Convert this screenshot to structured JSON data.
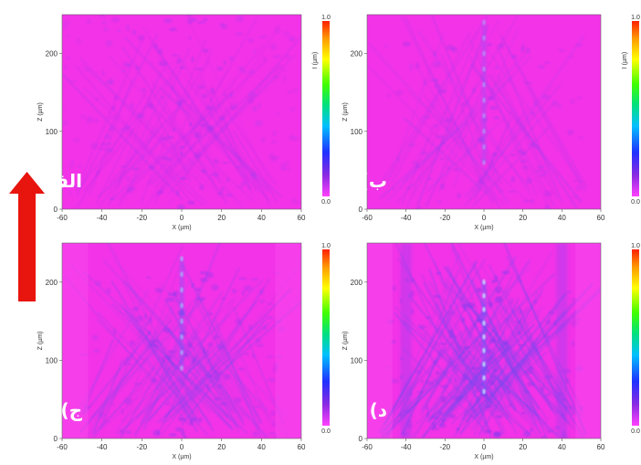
{
  "figure": {
    "arrow_color": "#e8140e"
  },
  "chart_data": [
    {
      "type": "heatmap",
      "panel_label": "الف)",
      "xlabel": "X (µm)",
      "ylabel": "Z (µm)",
      "xlim": [
        -60,
        60
      ],
      "ylim": [
        0,
        250
      ],
      "xticks": [
        "-60",
        "-40",
        "-20",
        "0",
        "20",
        "40",
        "60"
      ],
      "yticks": [
        "0",
        "100",
        "200"
      ],
      "colorbar": {
        "min": "0.0",
        "max": "1.0",
        "label": "I (µm)"
      },
      "background_color": "#f233e8",
      "pattern": "random-speckle"
    },
    {
      "type": "heatmap",
      "panel_label": "ب)",
      "xlabel": "X (µm)",
      "ylabel": "Z (µm)",
      "xlim": [
        -60,
        60
      ],
      "ylim": [
        0,
        250
      ],
      "xticks": [
        "-60",
        "-40",
        "-20",
        "0",
        "20",
        "40",
        "60"
      ],
      "yticks": [
        "0",
        "100",
        "200"
      ],
      "colorbar": {
        "min": "0.0",
        "max": "1.0",
        "label": "I (µm)"
      },
      "background_color": "#f233e8",
      "pattern": "weak-central-focus"
    },
    {
      "type": "heatmap",
      "panel_label": "ج)",
      "xlabel": "X (µm)",
      "ylabel": "Z (µm)",
      "xlim": [
        -60,
        60
      ],
      "ylim": [
        0,
        250
      ],
      "xticks": [
        "-60",
        "-40",
        "-20",
        "0",
        "20",
        "40",
        "60"
      ],
      "yticks": [
        "0",
        "100",
        "200"
      ],
      "colorbar": {
        "min": "0.0",
        "max": "1.0",
        "label": ""
      },
      "background_color": "#f233e8",
      "pattern": "interference-with-focal-line"
    },
    {
      "type": "heatmap",
      "panel_label": "د)",
      "xlabel": "X (µm)",
      "ylabel": "Z (µm)",
      "xlim": [
        -60,
        60
      ],
      "ylim": [
        0,
        250
      ],
      "xticks": [
        "-60",
        "-40",
        "-20",
        "0",
        "20",
        "40",
        "60"
      ],
      "yticks": [
        "0",
        "100",
        "200"
      ],
      "colorbar": {
        "min": "0.0",
        "max": "1.0",
        "label": ""
      },
      "background_color": "#f233e8",
      "pattern": "strong-cone-interference-with-bright-focal-line"
    }
  ]
}
